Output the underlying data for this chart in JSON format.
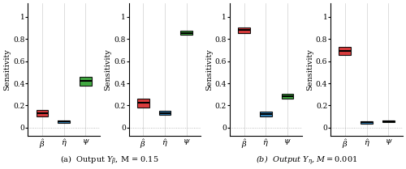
{
  "figsize": [
    5.0,
    2.09
  ],
  "dpi": 100,
  "subplots": [
    {
      "ylabel": "Sensitivity",
      "ylim": [
        -0.07,
        1.12
      ],
      "yticks": [
        0,
        0.2,
        0.4,
        0.6,
        0.8,
        1
      ],
      "ytick_labels": [
        "0",
        "0.2",
        "0.4",
        "0.6",
        "0.8",
        "1"
      ],
      "boxes": [
        {
          "color": "#d62728",
          "median": 0.13,
          "q1": 0.1,
          "q3": 0.16,
          "whislo": 0.1,
          "whishi": 0.16
        },
        {
          "color": "#1f77b4",
          "median": 0.055,
          "q1": 0.04,
          "q3": 0.065,
          "whislo": 0.04,
          "whishi": 0.065
        },
        {
          "color": "#2ca02c",
          "median": 0.42,
          "q1": 0.38,
          "q3": 0.455,
          "whislo": 0.38,
          "whishi": 0.455
        }
      ]
    },
    {
      "ylabel": "Sensitivity",
      "ylim": [
        -0.07,
        1.12
      ],
      "yticks": [
        0,
        0.2,
        0.4,
        0.6,
        0.8,
        1
      ],
      "ytick_labels": [
        "0",
        "0.2",
        "0.4",
        "0.6",
        "0.8",
        "1"
      ],
      "boxes": [
        {
          "color": "#d62728",
          "median": 0.225,
          "q1": 0.185,
          "q3": 0.265,
          "whislo": 0.185,
          "whishi": 0.265
        },
        {
          "color": "#1f77b4",
          "median": 0.13,
          "q1": 0.115,
          "q3": 0.155,
          "whislo": 0.115,
          "whishi": 0.155
        },
        {
          "color": "#2ca02c",
          "median": 0.855,
          "q1": 0.835,
          "q3": 0.875,
          "whislo": 0.835,
          "whishi": 0.875
        }
      ]
    },
    {
      "ylabel": "Sensitivity",
      "ylim": [
        -0.07,
        1.12
      ],
      "yticks": [
        0,
        0.2,
        0.4,
        0.6,
        0.8,
        1
      ],
      "ytick_labels": [
        "0",
        "0.2",
        "0.4",
        "0.6",
        "0.8",
        "1"
      ],
      "boxes": [
        {
          "color": "#d62728",
          "median": 0.88,
          "q1": 0.855,
          "q3": 0.905,
          "whislo": 0.855,
          "whishi": 0.905
        },
        {
          "color": "#1f77b4",
          "median": 0.125,
          "q1": 0.105,
          "q3": 0.145,
          "whislo": 0.105,
          "whishi": 0.145
        },
        {
          "color": "#2ca02c",
          "median": 0.285,
          "q1": 0.265,
          "q3": 0.305,
          "whislo": 0.265,
          "whishi": 0.305
        }
      ]
    },
    {
      "ylabel": "Sensitivity",
      "ylim": [
        -0.07,
        1.12
      ],
      "yticks": [
        0,
        0.2,
        0.4,
        0.6,
        0.8,
        1
      ],
      "ytick_labels": [
        "0",
        "0.2",
        "0.4",
        "0.6",
        "0.8",
        "1"
      ],
      "boxes": [
        {
          "color": "#d62728",
          "median": 0.69,
          "q1": 0.655,
          "q3": 0.725,
          "whislo": 0.655,
          "whishi": 0.725
        },
        {
          "color": "#1f77b4",
          "median": 0.048,
          "q1": 0.038,
          "q3": 0.058,
          "whislo": 0.038,
          "whishi": 0.058
        },
        {
          "color": "#2ca02c",
          "median": 0.058,
          "q1": 0.048,
          "q3": 0.068,
          "whislo": 0.048,
          "whishi": 0.068
        }
      ]
    }
  ],
  "xtick_labels": [
    "$\\hat{\\beta}$",
    "$\\hat{\\eta}$",
    "$\\psi$"
  ],
  "box_width": 0.55,
  "background_color": "#ffffff",
  "grid_color": "#d0d0d0",
  "caption_a": "(a)  Output $Y_{\\beta}$, M = 0.15",
  "caption_b": "(b)  Output $Y_{\\eta}$, $M = 0.001$"
}
